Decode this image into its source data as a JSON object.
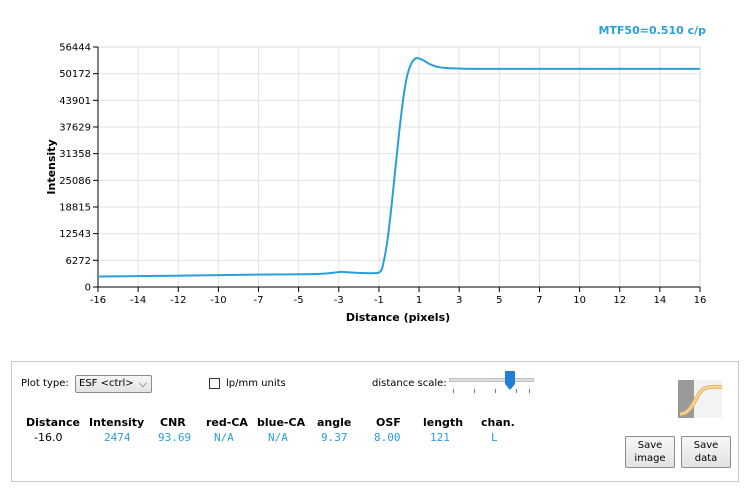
{
  "mtf_label": "MTF50=0.510 c/p",
  "chart_data": {
    "type": "line",
    "title": "",
    "xlabel": "Distance (pixels)",
    "ylabel": "Intensity",
    "xlim": [
      -16,
      16
    ],
    "ylim": [
      0,
      56444
    ],
    "x_ticks": [
      "-16",
      "-14",
      "-12",
      "-10",
      "-7",
      "-5",
      "-3",
      "-1",
      "1",
      "3",
      "5",
      "7",
      "10",
      "12",
      "14",
      "16"
    ],
    "y_ticks": [
      "0",
      "6272",
      "12543",
      "18815",
      "25086",
      "31358",
      "37629",
      "43901",
      "50172",
      "56444"
    ],
    "grid": true,
    "color": "#2a9fd8",
    "series": [
      {
        "x": [
          -16,
          -12,
          -8,
          -5,
          -4,
          -3.2,
          -3,
          -2.5,
          -1.5,
          -1.0,
          -0.8,
          -0.6,
          -0.4,
          -0.2,
          0.0,
          0.2,
          0.4,
          0.6,
          0.8,
          1.0,
          1.3,
          1.6,
          2.0,
          2.5,
          3.0,
          4.0,
          6.0,
          10.0,
          16.0
        ],
        "y": [
          2474,
          2650,
          2900,
          3000,
          3150,
          3500,
          3550,
          3400,
          3250,
          3600,
          6200,
          11500,
          19000,
          27500,
          36000,
          43500,
          49000,
          52000,
          53500,
          53800,
          53300,
          52500,
          51800,
          51500,
          51400,
          51300,
          51300,
          51300,
          51300
        ]
      }
    ]
  },
  "controls": {
    "plot_type_label": "Plot type:",
    "plot_type_value": "ESF <ctrl>",
    "lpmm_label": "lp/mm units",
    "distance_scale_label": "distance scale:",
    "distance_scale_level": 0.77
  },
  "readout": {
    "headers": [
      "Distance",
      "Intensity",
      "CNR",
      "red-CA",
      "blue-CA",
      "angle",
      "OSF",
      "length",
      "chan."
    ],
    "values": [
      "-16.0",
      "2474",
      "93.69",
      "N/A",
      "N/A",
      "9.37",
      "8.00",
      "121",
      "L"
    ]
  },
  "buttons": {
    "save_image": "Save\nimage",
    "save_data": "Save\ndata"
  }
}
